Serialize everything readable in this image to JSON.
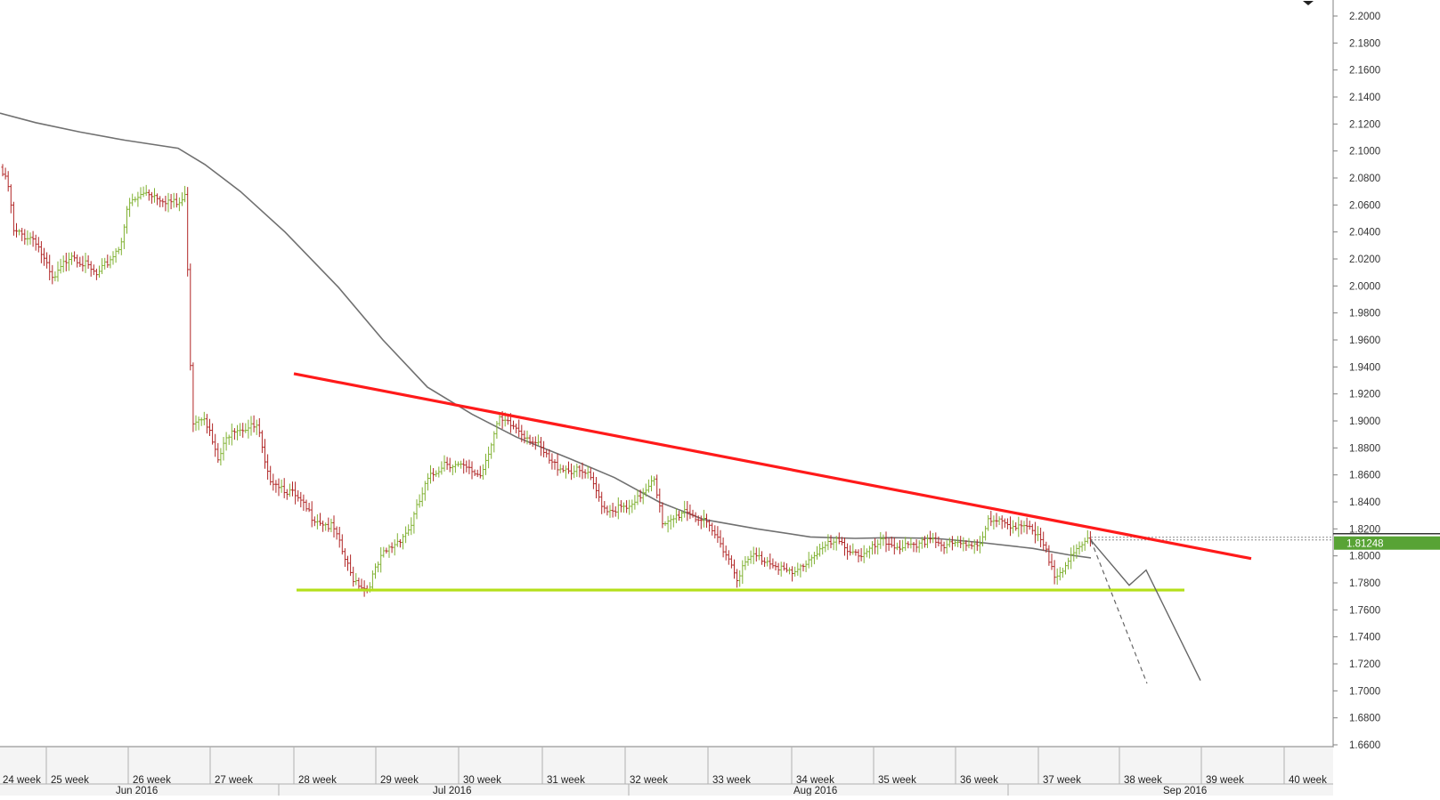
{
  "chart_data": {
    "type": "candlestick",
    "title": "",
    "xlabel": "",
    "ylabel": "",
    "ylim": [
      1.648,
      2.205
    ],
    "y_ticks": [
      "2.2000",
      "2.1800",
      "2.1600",
      "2.1400",
      "2.1200",
      "2.1000",
      "2.0800",
      "2.0600",
      "2.0400",
      "2.0200",
      "2.0000",
      "1.9800",
      "1.9600",
      "1.9400",
      "1.9200",
      "1.9000",
      "1.8800",
      "1.8600",
      "1.8400",
      "1.8200",
      "1.8000",
      "1.7800",
      "1.7600",
      "1.7400",
      "1.7200",
      "1.7000",
      "1.6800",
      "1.6600"
    ],
    "current_price": "1.81248",
    "current_price_value": 1.81248,
    "week_labels": [
      "24 week",
      "25 week",
      "26 week",
      "27 week",
      "28 week",
      "29 week",
      "30 week",
      "31 week",
      "32 week",
      "33 week",
      "34 week",
      "35 week",
      "36 week",
      "37 week",
      "38 week",
      "39 week",
      "40 week"
    ],
    "month_labels": [
      "Jun 2016",
      "Jul 2016",
      "Aug 2016",
      "Sep 2016"
    ],
    "price_path": [
      [
        0,
        2.088
      ],
      [
        12,
        2.07
      ],
      [
        14,
        2.04
      ],
      [
        40,
        2.035
      ],
      [
        60,
        2.003
      ],
      [
        80,
        2.025
      ],
      [
        110,
        2.007
      ],
      [
        135,
        2.03
      ],
      [
        145,
        2.06
      ],
      [
        165,
        2.07
      ],
      [
        200,
        2.06
      ],
      [
        210,
        2.067
      ],
      [
        212,
        1.98
      ],
      [
        217,
        1.9
      ],
      [
        230,
        1.905
      ],
      [
        245,
        1.87
      ],
      [
        260,
        1.895
      ],
      [
        290,
        1.895
      ],
      [
        300,
        1.86
      ],
      [
        330,
        1.845
      ],
      [
        350,
        1.83
      ],
      [
        375,
        1.82
      ],
      [
        395,
        1.785
      ],
      [
        412,
        1.775
      ],
      [
        430,
        1.8
      ],
      [
        460,
        1.82
      ],
      [
        480,
        1.855
      ],
      [
        500,
        1.87
      ],
      [
        540,
        1.86
      ],
      [
        560,
        1.9
      ],
      [
        580,
        1.895
      ],
      [
        600,
        1.885
      ],
      [
        620,
        1.868
      ],
      [
        660,
        1.86
      ],
      [
        680,
        1.835
      ],
      [
        710,
        1.835
      ],
      [
        735,
        1.86
      ],
      [
        745,
        1.82
      ],
      [
        770,
        1.835
      ],
      [
        790,
        1.825
      ],
      [
        810,
        1.81
      ],
      [
        828,
        1.785
      ],
      [
        845,
        1.8
      ],
      [
        870,
        1.795
      ],
      [
        890,
        1.785
      ],
      [
        920,
        1.805
      ],
      [
        940,
        1.81
      ],
      [
        970,
        1.8
      ],
      [
        990,
        1.81
      ],
      [
        1030,
        1.805
      ],
      [
        1045,
        1.815
      ],
      [
        1060,
        1.807
      ],
      [
        1100,
        1.81
      ],
      [
        1110,
        1.825
      ],
      [
        1150,
        1.823
      ],
      [
        1170,
        1.81
      ],
      [
        1185,
        1.787
      ],
      [
        1200,
        1.795
      ],
      [
        1225,
        1.815
      ]
    ],
    "moving_average": [
      [
        0,
        2.128
      ],
      [
        40,
        2.121
      ],
      [
        90,
        2.114
      ],
      [
        140,
        2.108
      ],
      [
        200,
        2.102
      ],
      [
        230,
        2.09
      ],
      [
        270,
        2.07
      ],
      [
        320,
        2.04
      ],
      [
        380,
        1.999
      ],
      [
        430,
        1.96
      ],
      [
        480,
        1.925
      ],
      [
        530,
        1.905
      ],
      [
        580,
        1.888
      ],
      [
        640,
        1.872
      ],
      [
        690,
        1.858
      ],
      [
        740,
        1.84
      ],
      [
        790,
        1.827
      ],
      [
        850,
        1.82
      ],
      [
        910,
        1.814
      ],
      [
        960,
        1.813
      ],
      [
        1000,
        1.8135
      ],
      [
        1050,
        1.813
      ],
      [
        1100,
        1.81
      ],
      [
        1160,
        1.8055
      ],
      [
        1200,
        1.8008
      ],
      [
        1225,
        1.7985
      ]
    ],
    "resistance_line": {
      "x": [
        330,
        1405
      ],
      "y": [
        1.935,
        1.798
      ],
      "color": "#ff1a1a"
    },
    "support_line": {
      "x": [
        333,
        1330
      ],
      "y": [
        1.7747,
        1.7747
      ],
      "color": "#b4df19"
    },
    "projection_solid": {
      "x": [
        1225,
        1268,
        1287,
        1348
      ],
      "y": [
        1.8116,
        1.7782,
        1.7895,
        1.7077
      ]
    },
    "projection_dashed": {
      "x": [
        1225,
        1288
      ],
      "y": [
        1.8116,
        1.7055
      ]
    },
    "colors": {
      "bull": "#7fb030",
      "bear": "#b02525",
      "ma": "#707070",
      "price_tag": "#58a335"
    }
  }
}
